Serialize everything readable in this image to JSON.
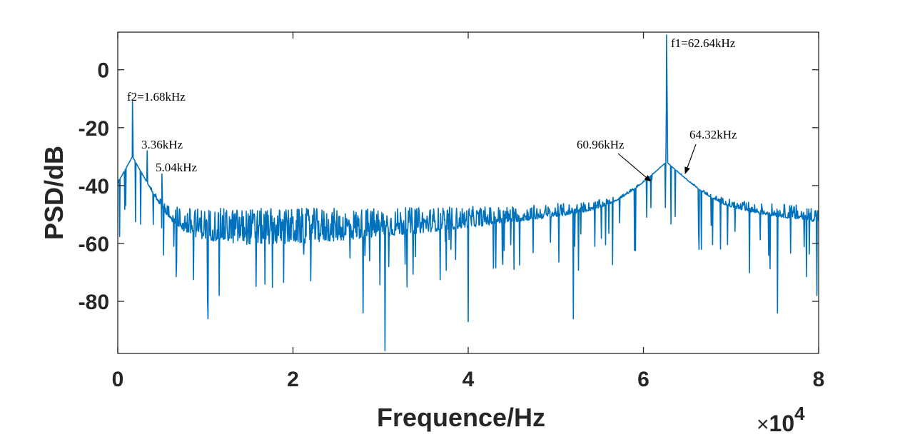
{
  "chart_data": {
    "type": "line",
    "title": "",
    "xlabel": "Frequence/Hz",
    "ylabel": "PSD/dB",
    "xlim": [
      0,
      80000
    ],
    "ylim": [
      -98,
      13
    ],
    "x_ticks": [
      0,
      20000,
      40000,
      60000,
      80000
    ],
    "x_tick_labels": [
      "0",
      "2",
      "4",
      "6",
      "8"
    ],
    "x_exponent": {
      "times": "×",
      "base": "10",
      "power": "4"
    },
    "y_ticks": [
      0,
      -20,
      -40,
      -60,
      -80
    ],
    "y_tick_labels": [
      "0",
      "-20",
      "-40",
      "-60",
      "-80"
    ],
    "grid": false,
    "line_color": "#0072BD",
    "noise_floor_db": -56,
    "series": [
      {
        "peaks": [
          {
            "x": 1680,
            "y": -11
          },
          {
            "x": 3360,
            "y": -28
          },
          {
            "x": 5040,
            "y": -36
          },
          {
            "x": 60960,
            "y": -38
          },
          {
            "x": 62640,
            "y": 12
          },
          {
            "x": 64320,
            "y": -36
          }
        ],
        "dips": [
          {
            "x": 30500,
            "y": -97
          },
          {
            "x": 10300,
            "y": -86
          },
          {
            "x": 28000,
            "y": -84
          },
          {
            "x": 40000,
            "y": -87
          },
          {
            "x": 52000,
            "y": -86
          },
          {
            "x": 75300,
            "y": -84
          },
          {
            "x": 79800,
            "y": -78
          }
        ]
      }
    ],
    "annotations": [
      {
        "text": "f1=62.64kHz",
        "x": 62640,
        "y": 12,
        "arrow": false
      },
      {
        "text": "f2=1.68kHz",
        "x": 1680,
        "y": -11,
        "arrow": false
      },
      {
        "text": "3.36kHz",
        "x": 3360,
        "y": -28,
        "arrow": false
      },
      {
        "text": "5.04kHz",
        "x": 5040,
        "y": -36,
        "arrow": false
      },
      {
        "text": "60.96kHz",
        "x": 60960,
        "y": -38,
        "arrow": true
      },
      {
        "text": "64.32kHz",
        "x": 64320,
        "y": -36,
        "arrow": true
      }
    ]
  }
}
